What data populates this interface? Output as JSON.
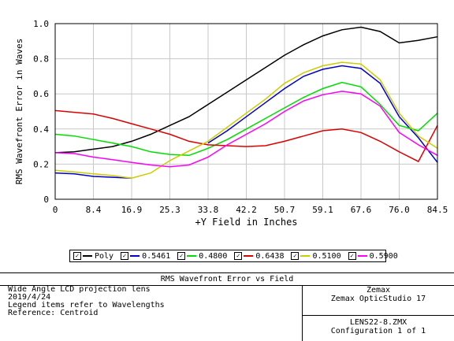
{
  "chart_data": {
    "type": "line",
    "ylabel": "RMS Wavefront Error in Waves",
    "xlabel": "+Y Field in Inches",
    "xlim": [
      0,
      84.5
    ],
    "ylim": [
      0,
      1.0
    ],
    "x_ticks": [
      "0",
      "8.4",
      "16.9",
      "25.3",
      "33.8",
      "42.2",
      "50.7",
      "59.1",
      "67.6",
      "76.0",
      "84.5"
    ],
    "y_ticks": [
      "0",
      "0.2",
      "0.4",
      "0.6",
      "0.8",
      "1.0"
    ],
    "grid": true,
    "x": [
      0,
      4.225,
      8.45,
      12.675,
      16.9,
      21.125,
      25.35,
      29.575,
      33.8,
      38.025,
      42.25,
      46.475,
      50.7,
      54.925,
      59.15,
      63.375,
      67.6,
      71.825,
      76.05,
      80.275,
      84.5
    ],
    "series": [
      {
        "name": "Poly",
        "color": "#000000",
        "values": [
          0.265,
          0.27,
          0.285,
          0.3,
          0.33,
          0.37,
          0.42,
          0.47,
          0.54,
          0.61,
          0.68,
          0.75,
          0.82,
          0.88,
          0.93,
          0.965,
          0.98,
          0.955,
          0.89,
          0.905,
          0.925
        ]
      },
      {
        "name": "0.5461",
        "color": "#0000cc",
        "values": [
          0.15,
          0.145,
          0.13,
          0.125,
          0.12,
          null,
          null,
          null,
          0.32,
          0.39,
          0.47,
          0.55,
          0.63,
          0.7,
          0.74,
          0.76,
          0.745,
          0.66,
          0.47,
          0.35,
          0.21
        ]
      },
      {
        "name": "0.4800",
        "color": "#00dd00",
        "values": [
          0.37,
          0.36,
          0.34,
          0.32,
          0.3,
          0.27,
          0.255,
          0.25,
          0.29,
          0.34,
          0.4,
          0.46,
          0.52,
          0.58,
          0.63,
          0.665,
          0.64,
          0.54,
          0.42,
          0.39,
          0.49
        ]
      },
      {
        "name": "0.6438",
        "color": "#dd0000",
        "values": [
          0.505,
          0.495,
          0.485,
          0.46,
          0.43,
          0.4,
          0.37,
          0.33,
          0.31,
          0.305,
          0.3,
          0.305,
          0.33,
          0.36,
          0.39,
          0.4,
          0.38,
          0.33,
          0.27,
          0.215,
          0.42
        ]
      },
      {
        "name": "0.5100",
        "color": "#cccc00",
        "values": [
          0.165,
          0.155,
          0.145,
          0.135,
          0.12,
          0.15,
          0.22,
          0.275,
          0.33,
          0.41,
          0.49,
          0.57,
          0.66,
          0.72,
          0.76,
          0.78,
          0.77,
          0.68,
          0.49,
          0.36,
          0.29
        ]
      },
      {
        "name": "0.5900",
        "color": "#ff00ff",
        "values": [
          0.265,
          0.26,
          0.24,
          0.225,
          0.21,
          0.195,
          0.185,
          0.195,
          0.24,
          0.31,
          0.37,
          0.43,
          0.5,
          0.56,
          0.595,
          0.615,
          0.6,
          0.53,
          0.38,
          0.31,
          0.25
        ]
      }
    ]
  },
  "legend": {
    "items": [
      {
        "label": "Poly",
        "color": "#000000",
        "check": "✓"
      },
      {
        "label": "0.5461",
        "color": "#0000cc",
        "check": "✓"
      },
      {
        "label": "0.4800",
        "color": "#00dd00",
        "check": "✓"
      },
      {
        "label": "0.6438",
        "color": "#dd0000",
        "check": "✓"
      },
      {
        "label": "0.5100",
        "color": "#cccc00",
        "check": "✓"
      },
      {
        "label": "0.5900",
        "color": "#ff00ff",
        "check": "✓"
      }
    ]
  },
  "info": {
    "title": "RMS Wavefront Error vs Field",
    "lines": [
      "Wide Angle LCD projection lens",
      "2019/4/24",
      "Legend items refer to Wavelengths",
      "Reference: Centroid"
    ],
    "vendor": "Zemax",
    "product": "Zemax OpticStudio 17",
    "file": "LENS22-8.ZMX",
    "config": "Configuration 1 of 1"
  }
}
